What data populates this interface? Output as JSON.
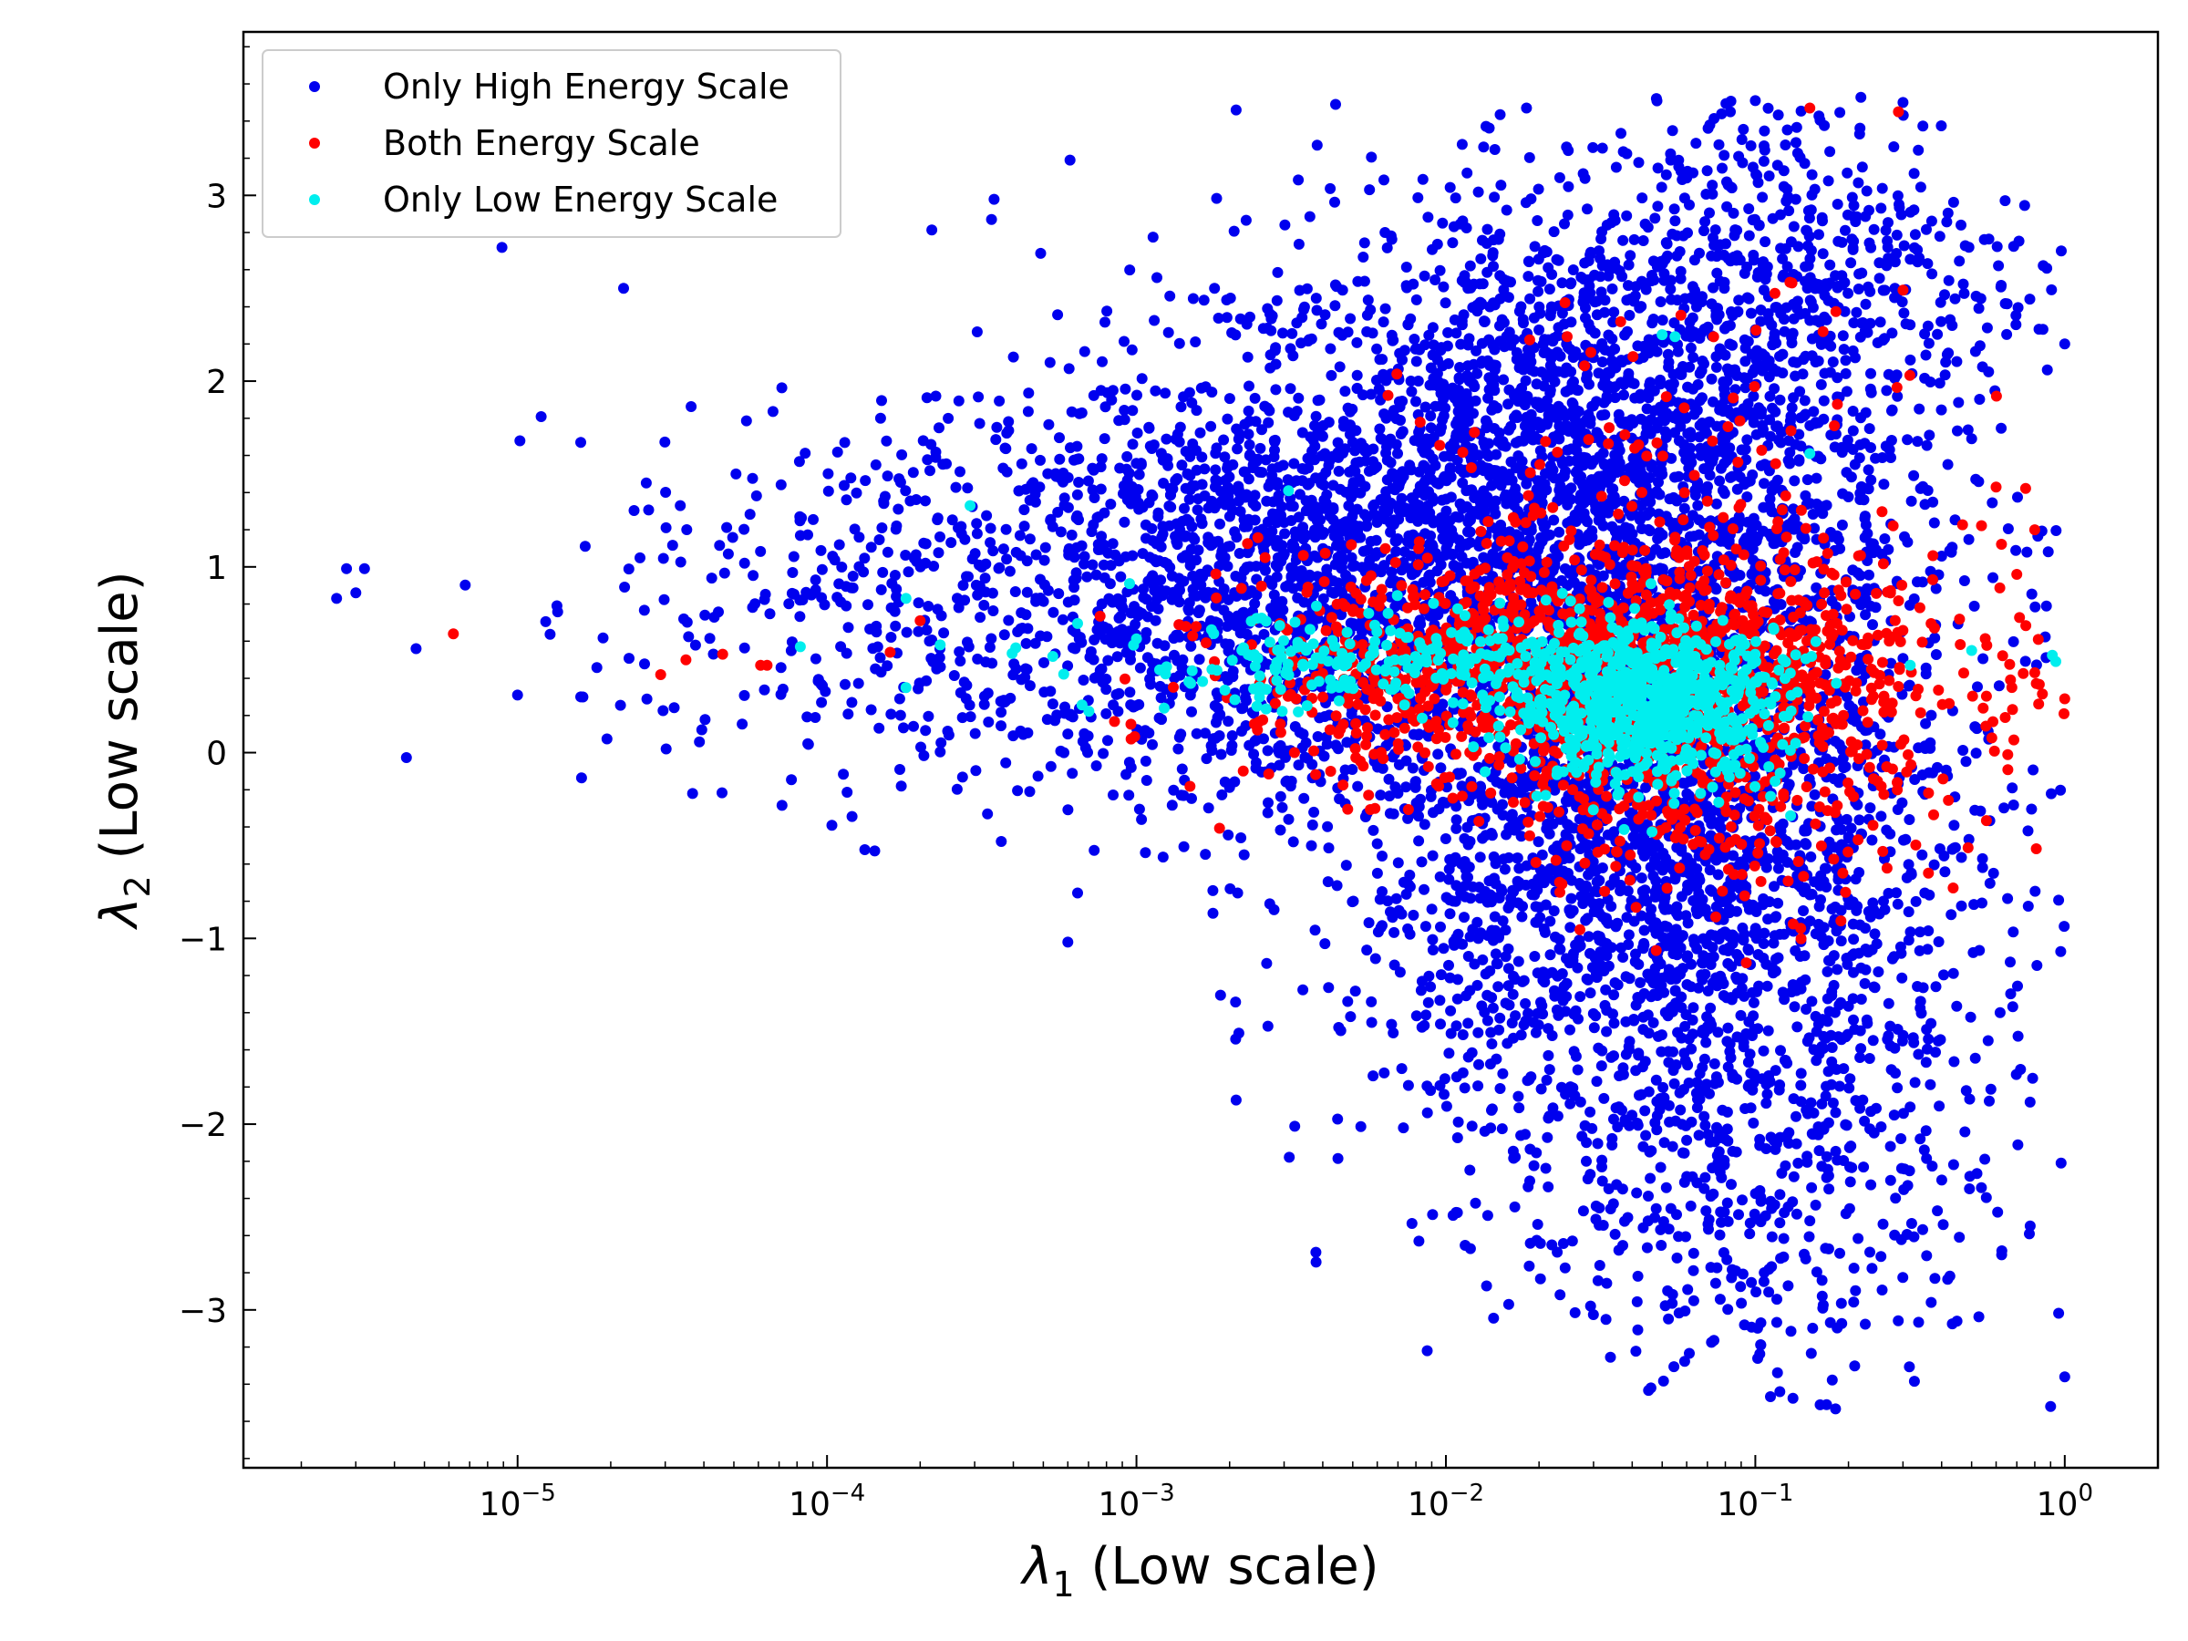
{
  "chart_data": {
    "type": "scatter",
    "xlabel_symbol": "λ",
    "xlabel_sub": "1",
    "xlabel_rest": " (Low scale)",
    "ylabel_symbol": "λ",
    "ylabel_sub": "2",
    "ylabel_rest": " (Low scale)",
    "xscale": "log",
    "xlim": [
      1.3e-06,
      2.0
    ],
    "ylim": [
      -3.85,
      3.88
    ],
    "x_tick_labels": [
      {
        "base": "10",
        "exp": "−5",
        "value": 1e-05
      },
      {
        "base": "10",
        "exp": "−4",
        "value": 0.0001
      },
      {
        "base": "10",
        "exp": "−3",
        "value": 0.001
      },
      {
        "base": "10",
        "exp": "−2",
        "value": 0.01
      },
      {
        "base": "10",
        "exp": "−1",
        "value": 0.1
      },
      {
        "base": "10",
        "exp": "0",
        "value": 1
      }
    ],
    "y_tick_labels": [
      {
        "label": "−3",
        "value": -3
      },
      {
        "label": "−2",
        "value": -2
      },
      {
        "label": "−1",
        "value": -1
      },
      {
        "label": "0",
        "value": 0
      },
      {
        "label": "1",
        "value": 1
      },
      {
        "label": "2",
        "value": 2
      },
      {
        "label": "3",
        "value": 3
      }
    ],
    "legend_position": "top-left",
    "series": [
      {
        "name": "Only High Energy Scale",
        "color": "#0000ee",
        "clusters": [
          {
            "logx_mean": -1.6,
            "logx_sd": 0.55,
            "y_mean": 1.4,
            "y_sd": 0.75,
            "n": 2600
          },
          {
            "logx_mean": -1.3,
            "logx_sd": 0.5,
            "y_mean": -0.6,
            "y_sd": 0.8,
            "n": 2200
          },
          {
            "logx_mean": -2.6,
            "logx_sd": 0.45,
            "y_mean": 0.9,
            "y_sd": 0.6,
            "n": 1200
          },
          {
            "logx_mean": -1.0,
            "logx_sd": 0.4,
            "y_mean": -2.2,
            "y_sd": 0.65,
            "n": 450
          },
          {
            "logx_mean": -3.7,
            "logx_sd": 0.5,
            "y_mean": 0.8,
            "y_sd": 0.55,
            "n": 450
          },
          {
            "logx_mean": -0.9,
            "logx_sd": 0.4,
            "y_mean": 2.6,
            "y_sd": 0.5,
            "n": 500
          }
        ],
        "points": [
          [
            2.6e-06,
            0.83
          ],
          [
            2.8e-06,
            0.99
          ],
          [
            3e-06,
            0.86
          ],
          [
            3.2e-06,
            0.99
          ],
          [
            8.9e-06,
            2.72
          ],
          [
            2.2e-05,
            2.5
          ],
          [
            1.6e-05,
            1.67
          ],
          [
            1e-05,
            0.31
          ],
          [
            4.7e-06,
            0.56
          ],
          [
            1.6e-05,
            0.3
          ],
          [
            0.00034,
            2.87
          ],
          [
            0.00061,
            3.19
          ],
          [
            0.0021,
            3.46
          ],
          [
            0.0044,
            3.49
          ],
          [
            0.00033,
            -0.33
          ],
          [
            0.0006,
            -1.02
          ],
          [
            0.0021,
            -1.87
          ],
          [
            0.0038,
            -2.69
          ],
          [
            0.0087,
            -3.22
          ],
          [
            0.012,
            -2.67
          ],
          [
            0.046,
            -3.42
          ],
          [
            0.12,
            -3.44
          ],
          [
            0.17,
            -3.51
          ],
          [
            0.9,
            -3.52
          ],
          [
            1.0,
            -3.36
          ],
          [
            1.0,
            2.2
          ],
          [
            0.3,
            3.5
          ],
          [
            0.1,
            3.51
          ]
        ]
      },
      {
        "name": "Both Energy Scale",
        "color": "#ff0000",
        "clusters": [
          {
            "logx_mean": -1.5,
            "logx_sd": 0.55,
            "y_mean": 0.45,
            "y_sd": 0.32,
            "n": 1400
          },
          {
            "logx_mean": -1.2,
            "logx_sd": 0.45,
            "y_mean": 1.2,
            "y_sd": 0.6,
            "n": 140
          },
          {
            "logx_mean": -1.1,
            "logx_sd": 0.35,
            "y_mean": -0.25,
            "y_sd": 0.3,
            "n": 220
          }
        ],
        "points": [
          [
            6.2e-06,
            0.64
          ],
          [
            2.9e-05,
            0.42
          ],
          [
            3.5e-05,
            0.5
          ],
          [
            4.6e-05,
            0.53
          ],
          [
            6.1e-05,
            0.47
          ],
          [
            6.4e-05,
            0.47
          ],
          [
            0.00016,
            0.54
          ],
          [
            0.0002,
            0.71
          ],
          [
            0.29,
            3.45
          ],
          [
            0.15,
            3.47
          ],
          [
            1.0,
            0.29
          ],
          [
            0.8,
            0.43
          ],
          [
            0.7,
            0.96
          ],
          [
            0.8,
            1.2
          ],
          [
            0.6,
            1.43
          ],
          [
            0.3,
            2.49
          ]
        ]
      },
      {
        "name": "Only Low Energy Scale",
        "color": "#00eeee",
        "clusters": [
          {
            "logx_mean": -1.35,
            "logx_sd": 0.22,
            "y_mean": 0.25,
            "y_sd": 0.2,
            "n": 700
          },
          {
            "logx_mean": -2.0,
            "logx_sd": 0.55,
            "y_mean": 0.48,
            "y_sd": 0.13,
            "n": 320
          }
        ],
        "points": [
          [
            8.2e-05,
            0.57
          ],
          [
            0.00018,
            0.83
          ],
          [
            0.00018,
            0.35
          ],
          [
            0.00029,
            1.33
          ],
          [
            0.00095,
            0.91
          ],
          [
            0.0031,
            1.41
          ],
          [
            0.05,
            2.25
          ],
          [
            0.055,
            2.24
          ],
          [
            0.15,
            1.61
          ],
          [
            0.5,
            0.55
          ],
          [
            0.021,
            -0.23
          ],
          [
            0.13,
            -0.34
          ]
        ]
      }
    ]
  }
}
